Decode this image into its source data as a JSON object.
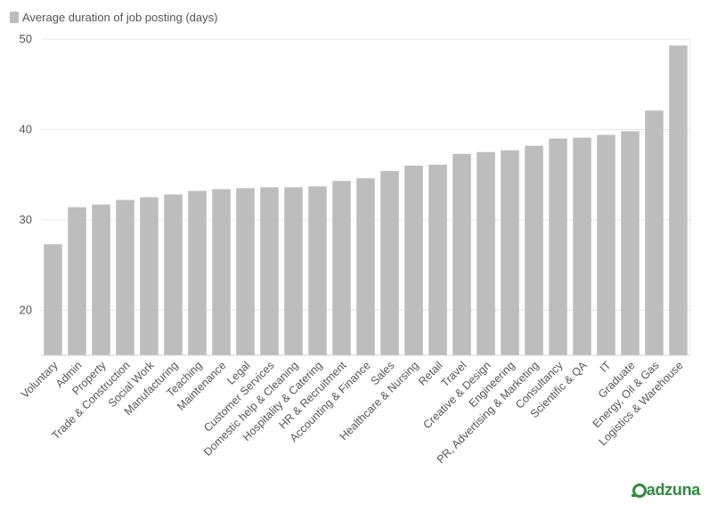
{
  "legend": {
    "label": "Average duration of job posting (days)"
  },
  "logo": {
    "text": "adzuna"
  },
  "colors": {
    "bar": "#bdbdbd",
    "grid": "#e6e6e6",
    "axis_text": "#555555",
    "brand": "#2e8b3e"
  },
  "chart_data": {
    "type": "bar",
    "title": "",
    "xlabel": "",
    "ylabel": "",
    "ylim": [
      15,
      50
    ],
    "yticks": [
      20,
      30,
      40,
      50
    ],
    "grid": true,
    "legend_position": "top-left",
    "categories": [
      "Voluntary",
      "Admin",
      "Property",
      "Trade & Construction",
      "Social Work",
      "Manufacturing",
      "Teaching",
      "Maintenance",
      "Legal",
      "Customer Services",
      "Domestic help & Cleaning",
      "Hospitality & Catering",
      "HR & Recruitment",
      "Accounting & Finance",
      "Sales",
      "Healthcare & Nursing",
      "Retail",
      "Travel",
      "Creative & Design",
      "Engineering",
      "PR, Advertising & Marketing",
      "Consultancy",
      "Scientific & QA",
      "IT",
      "Graduate",
      "Energy, Oil & Gas",
      "Logistics & Warehouse"
    ],
    "series": [
      {
        "name": "Average duration of job posting (days)",
        "values": [
          27.3,
          31.4,
          31.7,
          32.2,
          32.5,
          32.8,
          33.2,
          33.4,
          33.5,
          33.6,
          33.6,
          33.7,
          34.3,
          34.6,
          35.4,
          36.0,
          36.1,
          37.3,
          37.5,
          37.7,
          38.2,
          39.0,
          39.1,
          39.4,
          39.8,
          42.1,
          49.3
        ]
      }
    ]
  }
}
